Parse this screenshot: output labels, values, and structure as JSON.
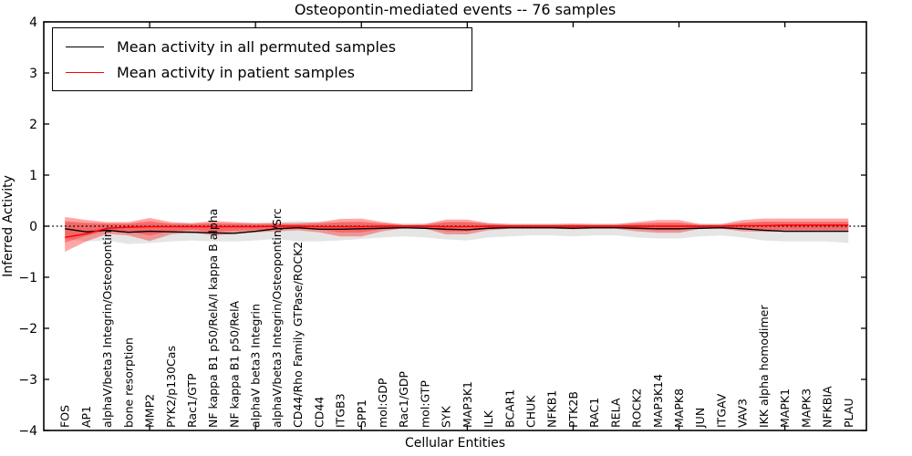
{
  "title": "Osteopontin-mediated events -- 76 samples",
  "axes": {
    "x_label": "Cellular Entities",
    "y_label": "Inferred Activity",
    "y_tick_labels": [
      "4",
      "3",
      "2",
      "1",
      "0",
      "−1",
      "−2",
      "−3",
      "−4"
    ],
    "y_tick_values": [
      4,
      3,
      2,
      1,
      0,
      -1,
      -2,
      -3,
      -4
    ],
    "ylim": [
      -4,
      4
    ],
    "x_tick_every": 5
  },
  "legend": {
    "items": [
      {
        "label": "Mean activity in all permuted samples",
        "color": "#000000"
      },
      {
        "label": "Mean activity in patient samples",
        "color": "#ff0000"
      }
    ]
  },
  "colors": {
    "permuted_line": "#000000",
    "patient_line": "#ff0000",
    "zero_line": "#000000",
    "gray_band": "rgba(0,0,0,0.10)",
    "red_band_outer": "rgba(255,0,0,0.35)",
    "red_band_inner": "rgba(255,0,0,0.30)",
    "frame": "#000000"
  },
  "chart_data": {
    "type": "line",
    "title": "Osteopontin-mediated events -- 76 samples",
    "xlabel": "Cellular Entities",
    "ylabel": "Inferred Activity",
    "ylim": [
      -4,
      4
    ],
    "grid": false,
    "legend_position": "upper left",
    "zero_reference_line": 0,
    "categories": [
      "FOS",
      "AP1",
      "alphaV/beta3 Integrin/Osteopontin",
      "bone resorption",
      "MMP2",
      "PYK2/p130Cas",
      "Rac1/GTP",
      "NF kappa B1 p50/RelA/I kappa B alpha",
      "NF kappa B1 p50/RelA",
      "alphaV beta3 Integrin",
      "alphaV/beta3 Integrin/Osteopontin/Src",
      "CD44/Rho Family GTPase/ROCK2",
      "CD44",
      "ITGB3",
      "SPP1",
      "mol:GDP",
      "Rac1/GDP",
      "mol:GTP",
      "SYK",
      "MAP3K1",
      "ILK",
      "BCAR1",
      "CHUK",
      "NFKB1",
      "PTK2B",
      "RAC1",
      "RELA",
      "ROCK2",
      "MAP3K14",
      "MAPK8",
      "JUN",
      "ITGAV",
      "VAV3",
      "IKK alpha homodimer",
      "MAPK1",
      "MAPK3",
      "NFKBIA",
      "PLAU"
    ],
    "series": [
      {
        "name": "Mean activity in all permuted samples",
        "values": [
          -0.05,
          -0.11,
          -0.08,
          -0.12,
          -0.1,
          -0.11,
          -0.12,
          -0.13,
          -0.14,
          -0.1,
          -0.05,
          -0.03,
          -0.06,
          -0.06,
          -0.05,
          -0.04,
          -0.03,
          -0.04,
          -0.06,
          -0.07,
          -0.04,
          -0.03,
          -0.03,
          -0.03,
          -0.04,
          -0.03,
          -0.03,
          -0.04,
          -0.05,
          -0.05,
          -0.04,
          -0.03,
          -0.05,
          -0.08,
          -0.1,
          -0.1,
          -0.1,
          -0.1
        ]
      },
      {
        "name": "Mean activity in patient samples",
        "values": [
          -0.22,
          -0.15,
          -0.04,
          -0.02,
          -0.01,
          -0.01,
          -0.01,
          -0.01,
          -0.01,
          -0.01,
          0.0,
          0.0,
          -0.01,
          -0.01,
          -0.01,
          0.0,
          0.0,
          0.0,
          -0.01,
          -0.01,
          0.0,
          0.0,
          0.0,
          0.0,
          0.0,
          0.0,
          0.0,
          0.0,
          0.0,
          0.0,
          0.0,
          0.0,
          0.01,
          0.01,
          0.02,
          0.02,
          0.02,
          0.02
        ]
      }
    ],
    "bands": [
      {
        "name": "permuted-spread",
        "upper": [
          0.08,
          0.05,
          0.05,
          0.05,
          0.06,
          0.05,
          0.05,
          0.05,
          0.05,
          0.06,
          0.08,
          0.1,
          0.08,
          0.07,
          0.06,
          0.06,
          0.06,
          0.06,
          0.08,
          0.08,
          0.06,
          0.05,
          0.05,
          0.05,
          0.05,
          0.05,
          0.05,
          0.06,
          0.06,
          0.06,
          0.05,
          0.05,
          0.06,
          0.08,
          0.06,
          0.06,
          0.06,
          0.06
        ],
        "lower": [
          -0.25,
          -0.3,
          -0.28,
          -0.35,
          -0.33,
          -0.3,
          -0.28,
          -0.3,
          -0.3,
          -0.28,
          -0.25,
          -0.3,
          -0.3,
          -0.28,
          -0.25,
          -0.22,
          -0.2,
          -0.22,
          -0.26,
          -0.28,
          -0.22,
          -0.2,
          -0.18,
          -0.18,
          -0.2,
          -0.18,
          -0.18,
          -0.22,
          -0.24,
          -0.24,
          -0.2,
          -0.18,
          -0.22,
          -0.28,
          -0.3,
          -0.3,
          -0.3,
          -0.33
        ]
      },
      {
        "name": "patient-spread-outer",
        "upper": [
          0.18,
          0.12,
          0.08,
          0.08,
          0.16,
          0.08,
          0.06,
          0.1,
          0.08,
          0.06,
          0.06,
          0.06,
          0.08,
          0.14,
          0.15,
          0.08,
          0.03,
          0.04,
          0.13,
          0.13,
          0.06,
          0.04,
          0.04,
          0.04,
          0.05,
          0.04,
          0.04,
          0.08,
          0.12,
          0.12,
          0.04,
          0.04,
          0.12,
          0.15,
          0.15,
          0.15,
          0.15,
          0.15
        ],
        "lower": [
          -0.5,
          -0.3,
          -0.15,
          -0.18,
          -0.29,
          -0.16,
          -0.12,
          -0.18,
          -0.15,
          -0.12,
          -0.1,
          -0.08,
          -0.12,
          -0.2,
          -0.2,
          -0.1,
          -0.04,
          -0.05,
          -0.16,
          -0.16,
          -0.08,
          -0.05,
          -0.05,
          -0.05,
          -0.06,
          -0.05,
          -0.05,
          -0.1,
          -0.13,
          -0.13,
          -0.05,
          -0.05,
          -0.1,
          -0.11,
          -0.11,
          -0.11,
          -0.11,
          -0.11
        ]
      },
      {
        "name": "patient-spread-inner",
        "upper": [
          0.1,
          0.07,
          0.05,
          0.05,
          0.1,
          0.05,
          0.04,
          0.06,
          0.05,
          0.04,
          0.04,
          0.04,
          0.05,
          0.08,
          0.09,
          0.05,
          0.02,
          0.02,
          0.08,
          0.08,
          0.04,
          0.02,
          0.02,
          0.02,
          0.03,
          0.02,
          0.02,
          0.05,
          0.07,
          0.07,
          0.02,
          0.02,
          0.07,
          0.09,
          0.09,
          0.09,
          0.09,
          0.09
        ],
        "lower": [
          -0.32,
          -0.19,
          -0.09,
          -0.11,
          -0.18,
          -0.1,
          -0.07,
          -0.11,
          -0.09,
          -0.07,
          -0.06,
          -0.05,
          -0.07,
          -0.12,
          -0.12,
          -0.06,
          -0.02,
          -0.03,
          -0.1,
          -0.1,
          -0.05,
          -0.03,
          -0.03,
          -0.03,
          -0.04,
          -0.03,
          -0.03,
          -0.06,
          -0.08,
          -0.08,
          -0.03,
          -0.03,
          -0.06,
          -0.07,
          -0.07,
          -0.07,
          -0.07,
          -0.07
        ]
      }
    ]
  }
}
